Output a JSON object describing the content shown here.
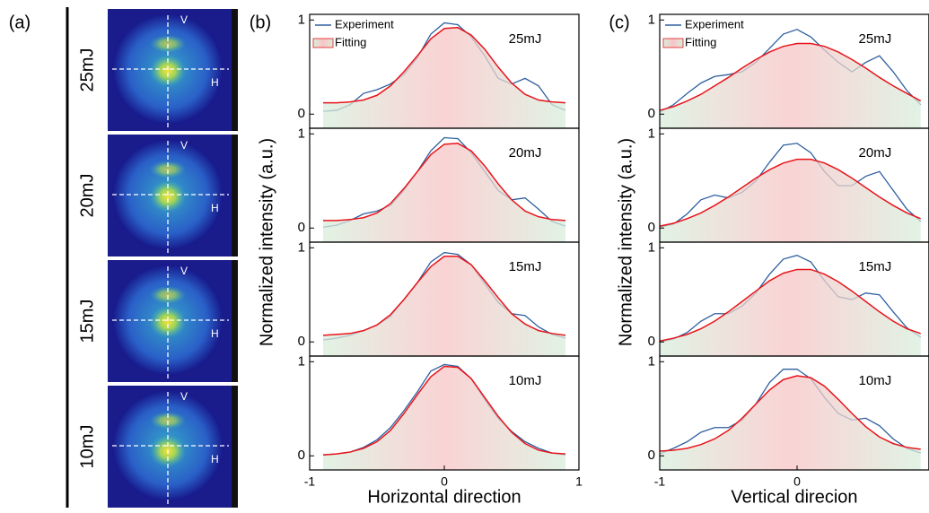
{
  "panel_a": {
    "label": "(a)",
    "energies": [
      "25mJ",
      "20mJ",
      "15mJ",
      "10mJ"
    ],
    "axis_labels": [
      "V",
      "H"
    ]
  },
  "chart_data": [
    {
      "type": "line",
      "label": "(b)",
      "xlabel": "Horizontal direction",
      "ylabel": "Normalized intensity (a.u.)",
      "legend": [
        {
          "name": "Experiment",
          "color": "#2f5f9e"
        },
        {
          "name": "Fitting",
          "color": "#e8141b"
        }
      ],
      "x": [
        -0.9,
        -0.8,
        -0.7,
        -0.6,
        -0.5,
        -0.4,
        -0.3,
        -0.2,
        -0.1,
        0,
        0.1,
        0.2,
        0.3,
        0.4,
        0.5,
        0.6,
        0.7,
        0.8,
        0.9
      ],
      "xlim": [
        -1,
        1
      ],
      "xticks": [
        -1,
        0,
        1
      ],
      "ylim": [
        -0.15,
        1.06
      ],
      "yticks": [
        0,
        1
      ],
      "subplots": [
        {
          "annotation": "25mJ",
          "series": [
            {
              "values": [
                0.03,
                0.04,
                0.1,
                0.22,
                0.26,
                0.32,
                0.42,
                0.6,
                0.85,
                0.97,
                0.95,
                0.82,
                0.62,
                0.38,
                0.32,
                0.38,
                0.3,
                0.1,
                0.04
              ]
            },
            {
              "values": [
                0.12,
                0.12,
                0.13,
                0.15,
                0.2,
                0.3,
                0.45,
                0.62,
                0.8,
                0.91,
                0.92,
                0.84,
                0.69,
                0.5,
                0.33,
                0.21,
                0.15,
                0.13,
                0.12
              ]
            }
          ]
        },
        {
          "annotation": "20mJ",
          "series": [
            {
              "values": [
                0.01,
                0.03,
                0.08,
                0.15,
                0.18,
                0.24,
                0.4,
                0.6,
                0.82,
                0.96,
                0.95,
                0.8,
                0.6,
                0.4,
                0.3,
                0.32,
                0.2,
                0.07,
                0.02
              ]
            },
            {
              "values": [
                0.08,
                0.08,
                0.09,
                0.11,
                0.16,
                0.26,
                0.42,
                0.6,
                0.78,
                0.89,
                0.9,
                0.82,
                0.66,
                0.47,
                0.3,
                0.18,
                0.12,
                0.09,
                0.08
              ]
            }
          ]
        },
        {
          "annotation": "15mJ",
          "series": [
            {
              "values": [
                0.02,
                0.04,
                0.07,
                0.12,
                0.18,
                0.27,
                0.45,
                0.63,
                0.85,
                0.95,
                0.93,
                0.82,
                0.62,
                0.42,
                0.3,
                0.28,
                0.16,
                0.08,
                0.04
              ]
            },
            {
              "values": [
                0.07,
                0.08,
                0.09,
                0.12,
                0.18,
                0.29,
                0.45,
                0.63,
                0.8,
                0.91,
                0.91,
                0.82,
                0.65,
                0.47,
                0.3,
                0.19,
                0.12,
                0.09,
                0.07
              ]
            }
          ]
        },
        {
          "annotation": "10mJ",
          "series": [
            {
              "values": [
                0.01,
                0.02,
                0.04,
                0.09,
                0.17,
                0.3,
                0.48,
                0.68,
                0.9,
                0.97,
                0.95,
                0.82,
                0.6,
                0.4,
                0.26,
                0.15,
                0.08,
                0.03,
                0.01
              ]
            },
            {
              "values": [
                0.01,
                0.02,
                0.04,
                0.08,
                0.15,
                0.27,
                0.45,
                0.65,
                0.84,
                0.95,
                0.94,
                0.82,
                0.62,
                0.42,
                0.25,
                0.13,
                0.06,
                0.03,
                0.02
              ]
            }
          ]
        }
      ]
    },
    {
      "type": "line",
      "label": "(c)",
      "xlabel": "Vertical direcion",
      "ylabel": "Normalized intensity (a.u.)",
      "legend": [
        {
          "name": "Experiment",
          "color": "#2f5f9e"
        },
        {
          "name": "Fitting",
          "color": "#e8141b"
        }
      ],
      "x": [
        -1,
        -0.9,
        -0.8,
        -0.7,
        -0.6,
        -0.5,
        -0.4,
        -0.3,
        -0.2,
        -0.1,
        0,
        0.1,
        0.2,
        0.3,
        0.4,
        0.5,
        0.6,
        0.7,
        0.8,
        0.9
      ],
      "xlim": [
        -1,
        0.96
      ],
      "xticks": [
        -1,
        0
      ],
      "ylim": [
        -0.15,
        1.06
      ],
      "yticks": [
        0,
        1
      ],
      "subplots": [
        {
          "annotation": "25mJ",
          "series": [
            {
              "values": [
                0.02,
                0.1,
                0.22,
                0.33,
                0.4,
                0.42,
                0.45,
                0.55,
                0.7,
                0.85,
                0.9,
                0.82,
                0.68,
                0.55,
                0.45,
                0.55,
                0.62,
                0.45,
                0.25,
                0.1
              ]
            },
            {
              "values": [
                0.04,
                0.08,
                0.14,
                0.21,
                0.3,
                0.39,
                0.49,
                0.58,
                0.66,
                0.72,
                0.75,
                0.75,
                0.72,
                0.66,
                0.58,
                0.49,
                0.39,
                0.3,
                0.22,
                0.14
              ]
            }
          ]
        },
        {
          "annotation": "20mJ",
          "series": [
            {
              "values": [
                0.01,
                0.04,
                0.15,
                0.3,
                0.35,
                0.32,
                0.38,
                0.5,
                0.7,
                0.88,
                0.9,
                0.8,
                0.6,
                0.45,
                0.45,
                0.55,
                0.6,
                0.4,
                0.2,
                0.07
              ]
            },
            {
              "values": [
                0.02,
                0.05,
                0.1,
                0.16,
                0.24,
                0.33,
                0.43,
                0.53,
                0.62,
                0.69,
                0.73,
                0.73,
                0.69,
                0.62,
                0.53,
                0.43,
                0.33,
                0.24,
                0.16,
                0.1
              ]
            }
          ]
        },
        {
          "annotation": "15mJ",
          "series": [
            {
              "values": [
                0,
                0.03,
                0.1,
                0.22,
                0.3,
                0.3,
                0.38,
                0.52,
                0.72,
                0.88,
                0.92,
                0.85,
                0.65,
                0.48,
                0.45,
                0.52,
                0.5,
                0.32,
                0.15,
                0.05
              ]
            },
            {
              "values": [
                0.01,
                0.04,
                0.08,
                0.14,
                0.22,
                0.32,
                0.43,
                0.54,
                0.65,
                0.73,
                0.77,
                0.77,
                0.72,
                0.64,
                0.54,
                0.43,
                0.32,
                0.22,
                0.14,
                0.09
              ]
            }
          ]
        },
        {
          "annotation": "10mJ",
          "series": [
            {
              "values": [
                0.02,
                0.08,
                0.15,
                0.25,
                0.3,
                0.3,
                0.38,
                0.55,
                0.78,
                0.92,
                0.92,
                0.82,
                0.62,
                0.45,
                0.38,
                0.4,
                0.32,
                0.18,
                0.08,
                0.03
              ]
            },
            {
              "values": [
                0.05,
                0.06,
                0.08,
                0.12,
                0.18,
                0.27,
                0.4,
                0.55,
                0.7,
                0.81,
                0.85,
                0.83,
                0.74,
                0.6,
                0.45,
                0.31,
                0.2,
                0.13,
                0.09,
                0.07
              ]
            }
          ]
        }
      ]
    }
  ]
}
